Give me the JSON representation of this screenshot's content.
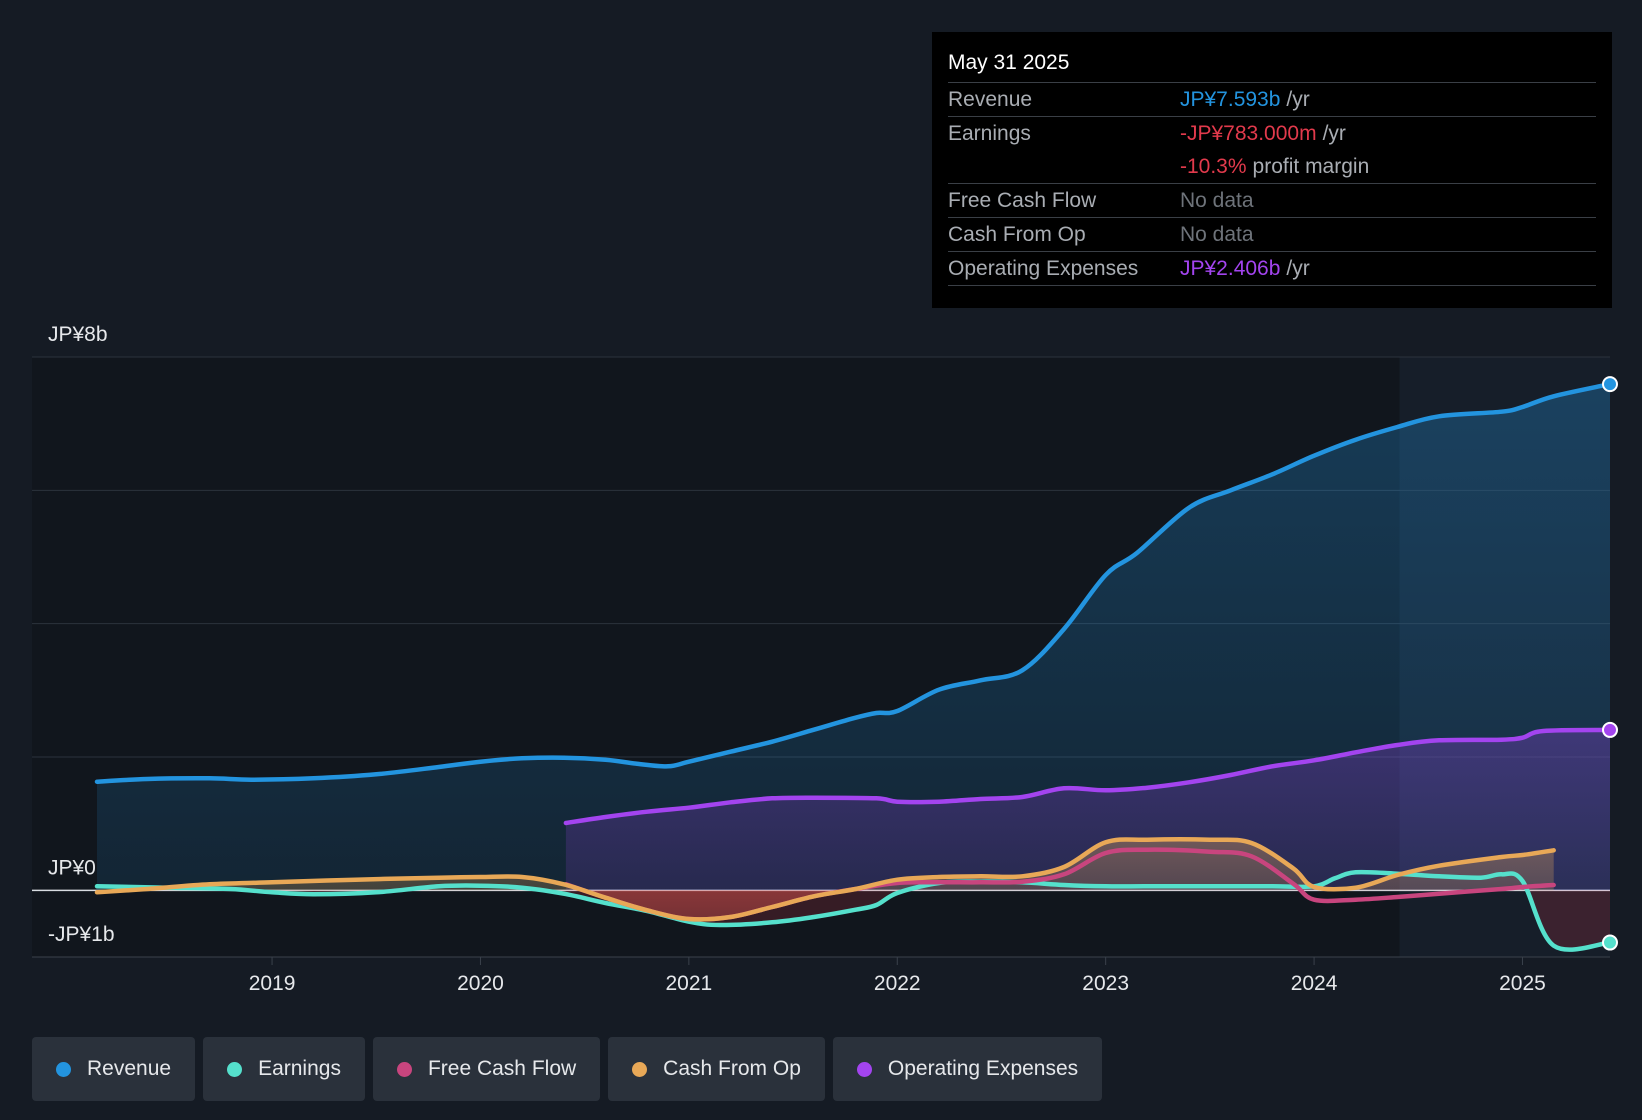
{
  "colors": {
    "revenue": "#2394df",
    "earnings": "#55e0cc",
    "free_cash_flow": "#c8457e",
    "cash_from_op": "#e8a857",
    "operating_expenses": "#a344ef",
    "negative": "#e23a4c"
  },
  "tooltip": {
    "date": "May 31 2025",
    "rows": [
      {
        "label": "Revenue",
        "value": "JP¥7.593b",
        "unit": "/yr",
        "color": "#2394df"
      },
      {
        "label": "Earnings",
        "value": "-JP¥783.000m",
        "unit": "/yr",
        "color": "#e23a4c"
      },
      {
        "label": "",
        "value": "-10.3%",
        "unit": "profit margin",
        "color": "#e23a4c"
      },
      {
        "label": "Free Cash Flow",
        "value": "No data",
        "unit": "",
        "color": ""
      },
      {
        "label": "Cash From Op",
        "value": "No data",
        "unit": "",
        "color": ""
      },
      {
        "label": "Operating Expenses",
        "value": "JP¥2.406b",
        "unit": "/yr",
        "color": "#a344ef"
      }
    ]
  },
  "legend": [
    {
      "name": "Revenue",
      "color": "#2394df"
    },
    {
      "name": "Earnings",
      "color": "#55e0cc"
    },
    {
      "name": "Free Cash Flow",
      "color": "#c8457e"
    },
    {
      "name": "Cash From Op",
      "color": "#e8a857"
    },
    {
      "name": "Operating Expenses",
      "color": "#a344ef"
    }
  ],
  "chart_data": {
    "type": "area",
    "title": "",
    "y_labels": [
      "JP¥8b",
      "JP¥0",
      "-JP¥1b"
    ],
    "ylim": [
      -1.0,
      8.0
    ],
    "xlim": [
      2018.16,
      2025.42
    ],
    "x_ticks": [
      2019,
      2020,
      2021,
      2022,
      2023,
      2024,
      2025
    ],
    "x_tick_labels": [
      "2019",
      "2020",
      "2021",
      "2022",
      "2023",
      "2024",
      "2025"
    ],
    "gridlines": [
      8,
      6,
      4,
      2,
      0
    ],
    "forecast_region_start": 2024.41,
    "series": [
      {
        "name": "Revenue",
        "key": "revenue",
        "unit": "JP¥b",
        "x": [
          2018.16,
          2018.4,
          2018.7,
          2018.9,
          2019.2,
          2019.5,
          2019.8,
          2020.0,
          2020.2,
          2020.4,
          2020.6,
          2020.75,
          2020.9,
          2021.0,
          2021.2,
          2021.4,
          2021.6,
          2021.8,
          2021.9,
          2022.0,
          2022.2,
          2022.4,
          2022.6,
          2022.8,
          2023.0,
          2023.15,
          2023.4,
          2023.6,
          2023.8,
          2024.0,
          2024.2,
          2024.4,
          2024.6,
          2024.9,
          2025.0,
          2025.15,
          2025.42
        ],
        "values": [
          1.63,
          1.67,
          1.68,
          1.66,
          1.68,
          1.74,
          1.85,
          1.93,
          1.98,
          1.99,
          1.96,
          1.9,
          1.86,
          1.93,
          2.08,
          2.23,
          2.41,
          2.59,
          2.66,
          2.69,
          3.01,
          3.15,
          3.3,
          3.92,
          4.73,
          5.06,
          5.74,
          6.0,
          6.24,
          6.52,
          6.76,
          6.95,
          7.11,
          7.18,
          7.25,
          7.41,
          7.593
        ]
      },
      {
        "name": "Operating Expenses",
        "key": "operating_expenses",
        "unit": "JP¥b",
        "x": [
          2020.41,
          2020.6,
          2020.8,
          2021.0,
          2021.2,
          2021.4,
          2021.6,
          2021.9,
          2022.0,
          2022.2,
          2022.4,
          2022.6,
          2022.8,
          2023.0,
          2023.2,
          2023.4,
          2023.6,
          2023.8,
          2024.0,
          2024.2,
          2024.4,
          2024.6,
          2024.9,
          2025.0,
          2025.1,
          2025.42
        ],
        "values": [
          1.01,
          1.1,
          1.18,
          1.24,
          1.32,
          1.38,
          1.39,
          1.38,
          1.33,
          1.33,
          1.37,
          1.4,
          1.53,
          1.5,
          1.54,
          1.62,
          1.73,
          1.86,
          1.95,
          2.07,
          2.18,
          2.25,
          2.26,
          2.29,
          2.39,
          2.406
        ]
      },
      {
        "name": "Cash From Op",
        "key": "cash_from_op",
        "unit": "JP¥b",
        "x": [
          2018.16,
          2018.4,
          2018.7,
          2019.0,
          2019.4,
          2019.8,
          2020.0,
          2020.2,
          2020.4,
          2020.6,
          2020.8,
          2021.0,
          2021.2,
          2021.4,
          2021.6,
          2021.8,
          2022.0,
          2022.2,
          2022.4,
          2022.6,
          2022.8,
          2023.0,
          2023.2,
          2023.5,
          2023.7,
          2023.9,
          2024.0,
          2024.2,
          2024.4,
          2024.6,
          2024.9,
          2025.0,
          2025.15
        ],
        "values": [
          -0.03,
          0.02,
          0.09,
          0.12,
          0.16,
          0.19,
          0.2,
          0.2,
          0.09,
          -0.11,
          -0.3,
          -0.43,
          -0.4,
          -0.25,
          -0.09,
          0.02,
          0.16,
          0.2,
          0.21,
          0.21,
          0.35,
          0.72,
          0.76,
          0.76,
          0.71,
          0.33,
          0.05,
          0.04,
          0.23,
          0.37,
          0.5,
          0.53,
          0.6
        ]
      },
      {
        "name": "Free Cash Flow",
        "key": "free_cash_flow",
        "unit": "JP¥b",
        "x": [
          2020.41,
          2020.6,
          2020.8,
          2021.0,
          2021.2,
          2021.4,
          2021.6,
          2021.8,
          2022.0,
          2022.2,
          2022.4,
          2022.6,
          2022.8,
          2023.0,
          2023.2,
          2023.5,
          2023.7,
          2023.9,
          2024.0,
          2024.2,
          2024.4,
          2024.6,
          2024.9,
          2025.0,
          2025.15
        ],
        "values": [
          0.09,
          -0.11,
          -0.3,
          -0.43,
          -0.4,
          -0.25,
          -0.09,
          0.02,
          0.11,
          0.12,
          0.12,
          0.13,
          0.24,
          0.56,
          0.61,
          0.58,
          0.51,
          0.1,
          -0.14,
          -0.14,
          -0.1,
          -0.05,
          0.02,
          0.05,
          0.08
        ]
      },
      {
        "name": "Earnings",
        "key": "earnings",
        "unit": "JP¥b",
        "x": [
          2018.16,
          2018.5,
          2018.8,
          2019.0,
          2019.2,
          2019.5,
          2019.8,
          2020.0,
          2020.2,
          2020.4,
          2020.6,
          2020.8,
          2021.0,
          2021.15,
          2021.4,
          2021.6,
          2021.8,
          2021.9,
          2022.0,
          2022.2,
          2022.4,
          2022.6,
          2022.8,
          2023.0,
          2023.2,
          2023.5,
          2023.8,
          2024.0,
          2024.1,
          2024.2,
          2024.4,
          2024.6,
          2024.8,
          2024.9,
          2025.0,
          2025.15,
          2025.42
        ],
        "values": [
          0.06,
          0.04,
          0.02,
          -0.03,
          -0.06,
          -0.03,
          0.06,
          0.07,
          0.04,
          -0.05,
          -0.19,
          -0.31,
          -0.47,
          -0.52,
          -0.48,
          -0.4,
          -0.29,
          -0.22,
          -0.04,
          0.11,
          0.13,
          0.12,
          0.08,
          0.06,
          0.06,
          0.06,
          0.06,
          0.06,
          0.18,
          0.27,
          0.25,
          0.21,
          0.19,
          0.24,
          0.14,
          -0.83,
          -0.783
        ]
      }
    ]
  }
}
